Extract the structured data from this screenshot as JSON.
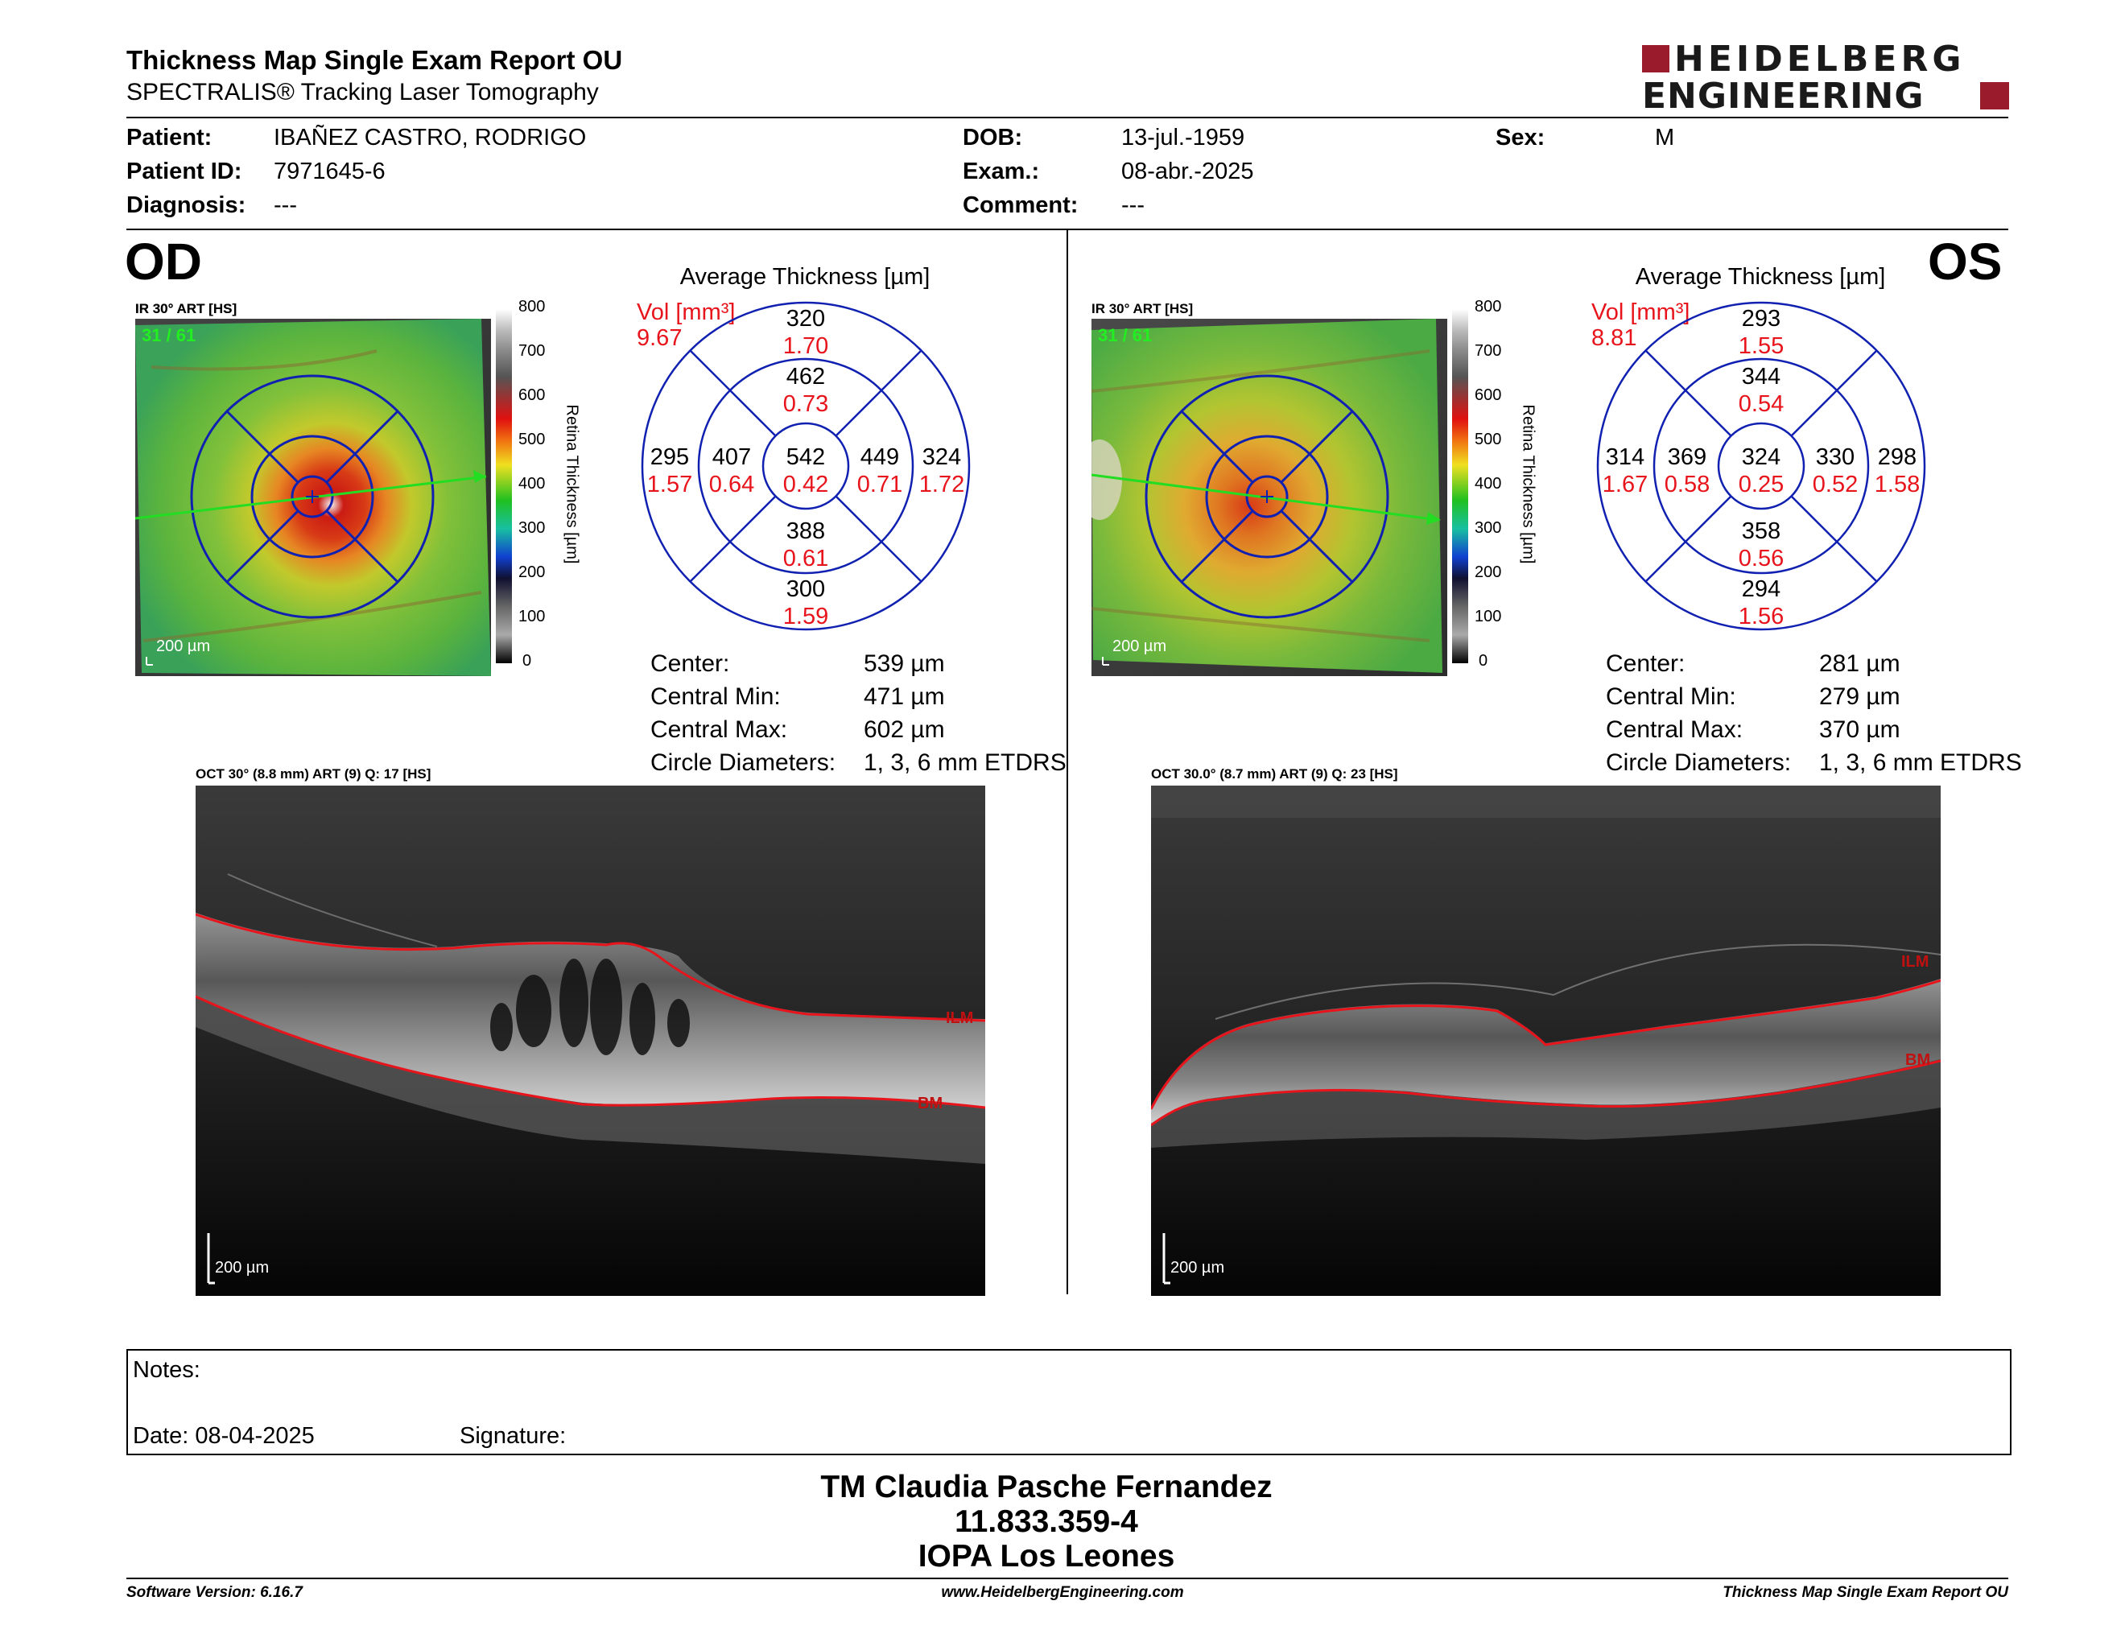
{
  "header": {
    "title": "Thickness Map Single Exam Report OU",
    "subtitle": "SPECTRALIS® Tracking Laser Tomography",
    "logo_line1": "HEIDELBERG",
    "logo_line2": "ENGINEERING"
  },
  "patient": {
    "patient_label": "Patient:",
    "patient_value": "IBAÑEZ CASTRO, RODRIGO",
    "id_label": "Patient ID:",
    "id_value": "7971645-6",
    "diagnosis_label": "Diagnosis:",
    "diagnosis_value": "---",
    "dob_label": "DOB:",
    "dob_value": "13-jul.-1959",
    "exam_label": "Exam.:",
    "exam_value": "08-abr.-2025",
    "comment_label": "Comment:",
    "comment_value": "---",
    "sex_label": "Sex:",
    "sex_value": "M"
  },
  "colors": {
    "volume_red": "#e8141c",
    "etdrs_blue": "#1020b0",
    "logo_red": "#9a1b2b",
    "scan_line": "#22dd22"
  },
  "od": {
    "eye_label": "OD",
    "ir_label": "IR 30° ART [HS]",
    "frame_label": "31 / 61",
    "scale_label": "200 µm",
    "colorbar_ticks": [
      "800",
      "700",
      "600",
      "500",
      "400",
      "300",
      "200",
      "100",
      "0"
    ],
    "colorbar_title": "Retina Thickness [µm]",
    "avg_title": "Average Thickness [µm]",
    "vol_label": "Vol [mm³]",
    "vol_total": "9.67",
    "sectors": {
      "center": {
        "t": "542",
        "v": "0.42"
      },
      "inner_sup": {
        "t": "462",
        "v": "0.73"
      },
      "inner_inf": {
        "t": "388",
        "v": "0.61"
      },
      "inner_left": {
        "t": "407",
        "v": "0.64"
      },
      "inner_right": {
        "t": "449",
        "v": "0.71"
      },
      "outer_sup": {
        "t": "320",
        "v": "1.70"
      },
      "outer_inf": {
        "t": "300",
        "v": "1.59"
      },
      "outer_left": {
        "t": "295",
        "v": "1.57"
      },
      "outer_right": {
        "t": "324",
        "v": "1.72"
      }
    },
    "stats": [
      {
        "k": "Center:",
        "v": "539 µm"
      },
      {
        "k": "Central Min:",
        "v": "471 µm"
      },
      {
        "k": "Central Max:",
        "v": "602 µm"
      },
      {
        "k": "Circle Diameters:",
        "v": "1, 3, 6 mm ETDRS"
      }
    ],
    "oct_label": "OCT 30° (8.8 mm) ART (9) Q: 17 [HS]",
    "oct_scale": "200 µm",
    "ilm": "ILM",
    "bm": "BM"
  },
  "os": {
    "eye_label": "OS",
    "ir_label": "IR 30° ART [HS]",
    "frame_label": "31 / 61",
    "scale_label": "200 µm",
    "colorbar_ticks": [
      "800",
      "700",
      "600",
      "500",
      "400",
      "300",
      "200",
      "100",
      "0"
    ],
    "colorbar_title": "Retina Thickness [µm]",
    "avg_title": "Average Thickness [µm]",
    "vol_label": "Vol [mm³]",
    "vol_total": "8.81",
    "sectors": {
      "center": {
        "t": "324",
        "v": "0.25"
      },
      "inner_sup": {
        "t": "344",
        "v": "0.54"
      },
      "inner_inf": {
        "t": "358",
        "v": "0.56"
      },
      "inner_left": {
        "t": "369",
        "v": "0.58"
      },
      "inner_right": {
        "t": "330",
        "v": "0.52"
      },
      "outer_sup": {
        "t": "293",
        "v": "1.55"
      },
      "outer_inf": {
        "t": "294",
        "v": "1.56"
      },
      "outer_left": {
        "t": "314",
        "v": "1.67"
      },
      "outer_right": {
        "t": "298",
        "v": "1.58"
      }
    },
    "stats": [
      {
        "k": "Center:",
        "v": "281 µm"
      },
      {
        "k": "Central Min:",
        "v": "279 µm"
      },
      {
        "k": "Central Max:",
        "v": "370 µm"
      },
      {
        "k": "Circle Diameters:",
        "v": "1, 3, 6 mm ETDRS"
      }
    ],
    "oct_label": "OCT 30.0° (8.7 mm) ART (9) Q: 23 [HS]",
    "oct_scale": "200 µm",
    "ilm": "ILM",
    "bm": "BM"
  },
  "notes": {
    "notes_label": "Notes:",
    "date_label": "Date: 08-04-2025",
    "signature_label": "Signature:"
  },
  "signature_block": {
    "name": "TM Claudia Pasche Fernandez",
    "id": "11.833.359-4",
    "org": "IOPA Los Leones"
  },
  "footer": {
    "software": "Software Version: 6.16.7",
    "website": "www.HeidelbergEngineering.com",
    "report": "Thickness Map Single Exam Report OU"
  }
}
